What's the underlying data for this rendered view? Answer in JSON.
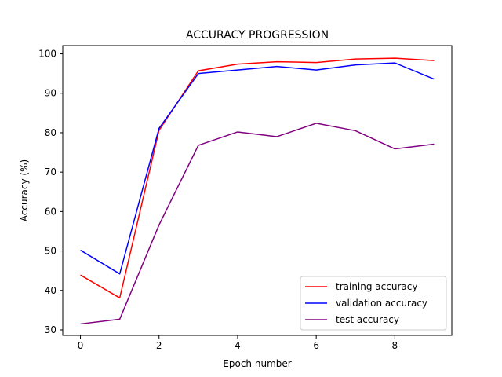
{
  "chart_data": {
    "type": "line",
    "title": "ACCURACY PROGRESSION",
    "xlabel": "Epoch number",
    "ylabel": "Accuracy (%)",
    "x": [
      0,
      1,
      2,
      3,
      4,
      5,
      6,
      7,
      8,
      9
    ],
    "xlim": [
      -0.45,
      9.45
    ],
    "ylim": [
      28.6,
      102.1
    ],
    "xticks": [
      0,
      2,
      4,
      6,
      8
    ],
    "yticks": [
      30,
      40,
      50,
      60,
      70,
      80,
      90,
      100
    ],
    "grid": false,
    "legend_position": "lower-right",
    "series": [
      {
        "name": "training accuracy",
        "color": "#ff0000",
        "values": [
          43.9,
          38.1,
          80.6,
          95.7,
          97.4,
          98.0,
          97.8,
          98.7,
          98.9,
          98.3
        ]
      },
      {
        "name": "validation accuracy",
        "color": "#0000ff",
        "values": [
          50.2,
          44.2,
          81.1,
          95.0,
          95.9,
          96.8,
          95.9,
          97.2,
          97.7,
          93.6
        ]
      },
      {
        "name": "test accuracy",
        "color": "#800080",
        "values": [
          31.5,
          32.7,
          56.6,
          76.8,
          80.2,
          79.0,
          82.4,
          80.5,
          75.9,
          77.1
        ]
      }
    ]
  }
}
